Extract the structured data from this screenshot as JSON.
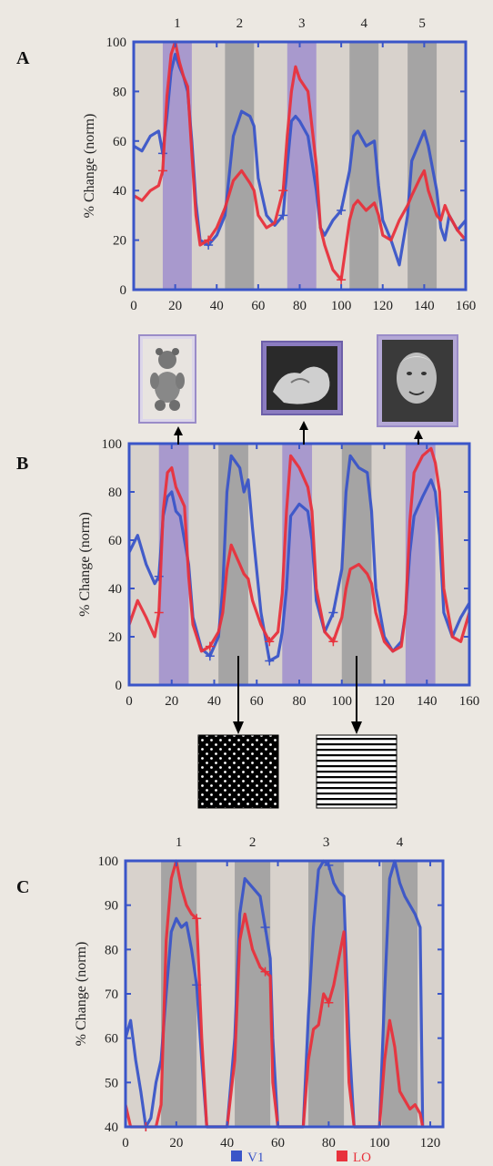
{
  "legend": [
    {
      "label": "V1",
      "color": "#3a55c8"
    },
    {
      "label": "LO",
      "color": "#e8323c"
    }
  ],
  "colors": {
    "axis": "#3a55c8",
    "purple_band": "#a08fcc",
    "gray_band": "#9c9c9c",
    "v1": "#3a55c8",
    "lo": "#e8323c",
    "background": "#ece8e2"
  },
  "stimuli": {
    "top_row": [
      "teddy-bear-photo",
      "stone-object-photo",
      "face-photo"
    ],
    "bottom_row": [
      "dot-texture-pattern",
      "horizontal-grating-pattern"
    ]
  },
  "chart_data": [
    {
      "panel_label": "A",
      "type": "line",
      "ylabel": "% Change (norm)",
      "xlim": [
        0,
        160
      ],
      "ylim": [
        0,
        100
      ],
      "xticks": [
        0,
        20,
        40,
        60,
        80,
        100,
        120,
        140,
        160
      ],
      "yticks": [
        0,
        20,
        40,
        60,
        80,
        100
      ],
      "block_labels": [
        "1",
        "2",
        "3",
        "4",
        "5"
      ],
      "blocks": [
        {
          "x0": 14,
          "x1": 28,
          "kind": "purple"
        },
        {
          "x0": 44,
          "x1": 58,
          "kind": "gray"
        },
        {
          "x0": 74,
          "x1": 88,
          "kind": "purple"
        },
        {
          "x0": 104,
          "x1": 118,
          "kind": "gray"
        },
        {
          "x0": 132,
          "x1": 146,
          "kind": "gray"
        }
      ],
      "series": [
        {
          "name": "V1",
          "x": [
            0,
            4,
            8,
            12,
            14,
            16,
            18,
            20,
            22,
            24,
            26,
            28,
            30,
            32,
            36,
            40,
            44,
            48,
            52,
            56,
            58,
            60,
            64,
            68,
            72,
            74,
            76,
            78,
            80,
            84,
            88,
            90,
            92,
            96,
            100,
            104,
            106,
            108,
            112,
            116,
            118,
            120,
            124,
            128,
            132,
            134,
            138,
            140,
            142,
            146,
            148,
            150,
            152,
            156,
            160
          ],
          "y": [
            58,
            56,
            62,
            64,
            55,
            70,
            88,
            95,
            90,
            86,
            80,
            60,
            35,
            20,
            18,
            22,
            30,
            62,
            72,
            70,
            66,
            45,
            30,
            26,
            30,
            50,
            68,
            70,
            68,
            62,
            40,
            25,
            22,
            28,
            32,
            48,
            62,
            64,
            58,
            60,
            42,
            28,
            20,
            10,
            30,
            52,
            60,
            64,
            58,
            40,
            25,
            20,
            30,
            24,
            28
          ]
        },
        {
          "name": "LO",
          "x": [
            0,
            4,
            8,
            12,
            14,
            16,
            18,
            20,
            22,
            24,
            26,
            28,
            30,
            32,
            36,
            40,
            44,
            48,
            52,
            56,
            58,
            60,
            64,
            68,
            72,
            74,
            76,
            78,
            80,
            84,
            88,
            90,
            92,
            96,
            100,
            104,
            106,
            108,
            112,
            116,
            118,
            120,
            124,
            128,
            132,
            134,
            138,
            140,
            142,
            146,
            148,
            150,
            152,
            156,
            160
          ],
          "y": [
            38,
            36,
            40,
            42,
            48,
            78,
            95,
            100,
            92,
            86,
            82,
            55,
            30,
            18,
            20,
            25,
            33,
            44,
            48,
            43,
            40,
            30,
            25,
            27,
            40,
            62,
            80,
            90,
            85,
            80,
            50,
            25,
            18,
            8,
            4,
            28,
            34,
            36,
            32,
            35,
            30,
            22,
            20,
            28,
            34,
            38,
            45,
            48,
            40,
            30,
            28,
            34,
            30,
            24,
            20
          ]
        }
      ]
    },
    {
      "panel_label": "B",
      "type": "line",
      "ylabel": "% Change (norm)",
      "xlim": [
        0,
        160
      ],
      "ylim": [
        0,
        100
      ],
      "xticks": [
        0,
        20,
        40,
        60,
        80,
        100,
        120,
        140,
        160
      ],
      "yticks": [
        0,
        20,
        40,
        60,
        80,
        100
      ],
      "blocks": [
        {
          "x0": 14,
          "x1": 28,
          "kind": "purple"
        },
        {
          "x0": 42,
          "x1": 56,
          "kind": "gray"
        },
        {
          "x0": 72,
          "x1": 86,
          "kind": "purple"
        },
        {
          "x0": 100,
          "x1": 114,
          "kind": "gray"
        },
        {
          "x0": 130,
          "x1": 144,
          "kind": "purple"
        }
      ],
      "series": [
        {
          "name": "V1",
          "x": [
            0,
            4,
            8,
            12,
            14,
            16,
            18,
            20,
            22,
            24,
            26,
            28,
            30,
            34,
            38,
            42,
            44,
            46,
            48,
            52,
            54,
            56,
            58,
            62,
            66,
            70,
            72,
            74,
            76,
            80,
            84,
            86,
            88,
            92,
            96,
            100,
            102,
            104,
            108,
            112,
            114,
            116,
            120,
            124,
            128,
            130,
            132,
            134,
            138,
            142,
            144,
            146,
            148,
            152,
            156,
            160
          ],
          "y": [
            55,
            62,
            50,
            42,
            45,
            70,
            78,
            80,
            72,
            70,
            60,
            50,
            28,
            15,
            12,
            20,
            40,
            80,
            95,
            90,
            80,
            85,
            65,
            30,
            10,
            12,
            22,
            40,
            70,
            75,
            72,
            60,
            35,
            22,
            30,
            48,
            80,
            95,
            90,
            88,
            72,
            40,
            20,
            14,
            18,
            30,
            55,
            70,
            78,
            85,
            80,
            62,
            30,
            20,
            28,
            34
          ]
        },
        {
          "name": "LO",
          "x": [
            0,
            4,
            8,
            12,
            14,
            16,
            18,
            20,
            22,
            24,
            26,
            28,
            30,
            34,
            38,
            42,
            44,
            46,
            48,
            52,
            54,
            56,
            58,
            62,
            66,
            70,
            72,
            74,
            76,
            80,
            84,
            86,
            88,
            92,
            96,
            100,
            102,
            104,
            108,
            112,
            114,
            116,
            120,
            124,
            128,
            130,
            132,
            134,
            138,
            142,
            144,
            146,
            148,
            152,
            156,
            160
          ],
          "y": [
            25,
            35,
            28,
            20,
            30,
            72,
            88,
            90,
            82,
            78,
            74,
            45,
            25,
            14,
            16,
            22,
            30,
            48,
            58,
            50,
            46,
            44,
            35,
            25,
            18,
            22,
            38,
            72,
            95,
            90,
            82,
            72,
            40,
            22,
            18,
            28,
            40,
            48,
            50,
            46,
            42,
            30,
            18,
            14,
            16,
            30,
            68,
            88,
            95,
            98,
            92,
            80,
            40,
            20,
            18,
            30
          ]
        }
      ]
    },
    {
      "panel_label": "C",
      "type": "line",
      "ylabel": "% Change (norm)",
      "xlim": [
        0,
        125
      ],
      "ylim": [
        40,
        100
      ],
      "xticks": [
        0,
        20,
        40,
        60,
        80,
        100,
        120
      ],
      "yticks": [
        40,
        50,
        60,
        70,
        80,
        90,
        100
      ],
      "block_labels": [
        "1",
        "2",
        "3",
        "4"
      ],
      "blocks": [
        {
          "x0": 14,
          "x1": 28,
          "kind": "gray"
        },
        {
          "x0": 43,
          "x1": 57,
          "kind": "gray"
        },
        {
          "x0": 72,
          "x1": 86,
          "kind": "gray"
        },
        {
          "x0": 101,
          "x1": 115,
          "kind": "gray"
        }
      ],
      "series": [
        {
          "name": "V1",
          "x": [
            0,
            2,
            4,
            6,
            8,
            10,
            12,
            14,
            16,
            18,
            20,
            22,
            24,
            26,
            28,
            30,
            32,
            36,
            40,
            43,
            45,
            47,
            50,
            53,
            55,
            57,
            58,
            60,
            66,
            70,
            72,
            74,
            76,
            78,
            80,
            82,
            84,
            86,
            88,
            90,
            96,
            100,
            102,
            104,
            106,
            108,
            110,
            112,
            114,
            116,
            117
          ],
          "y": [
            60,
            64,
            55,
            48,
            40,
            42,
            50,
            55,
            70,
            84,
            87,
            85,
            86,
            80,
            72,
            55,
            40,
            40,
            40,
            60,
            88,
            96,
            94,
            92,
            85,
            78,
            60,
            40,
            40,
            40,
            65,
            85,
            98,
            100,
            99,
            95,
            93,
            92,
            60,
            40,
            40,
            40,
            70,
            96,
            100,
            95,
            92,
            90,
            88,
            85,
            40
          ]
        },
        {
          "name": "LO",
          "x": [
            0,
            2,
            4,
            6,
            8,
            10,
            12,
            14,
            16,
            18,
            20,
            22,
            24,
            26,
            28,
            30,
            32,
            36,
            40,
            43,
            45,
            47,
            50,
            53,
            55,
            57,
            58,
            60,
            66,
            70,
            72,
            74,
            76,
            78,
            80,
            82,
            84,
            86,
            88,
            90,
            96,
            100,
            102,
            104,
            106,
            108,
            110,
            112,
            114,
            116,
            117
          ],
          "y": [
            45,
            40,
            40,
            40,
            40,
            40,
            40,
            45,
            82,
            96,
            100,
            94,
            90,
            88,
            87,
            60,
            40,
            40,
            40,
            55,
            82,
            88,
            80,
            76,
            75,
            74,
            50,
            40,
            40,
            40,
            55,
            62,
            63,
            70,
            68,
            72,
            78,
            84,
            50,
            40,
            40,
            40,
            55,
            64,
            58,
            48,
            46,
            44,
            45,
            43,
            40
          ]
        }
      ]
    }
  ]
}
